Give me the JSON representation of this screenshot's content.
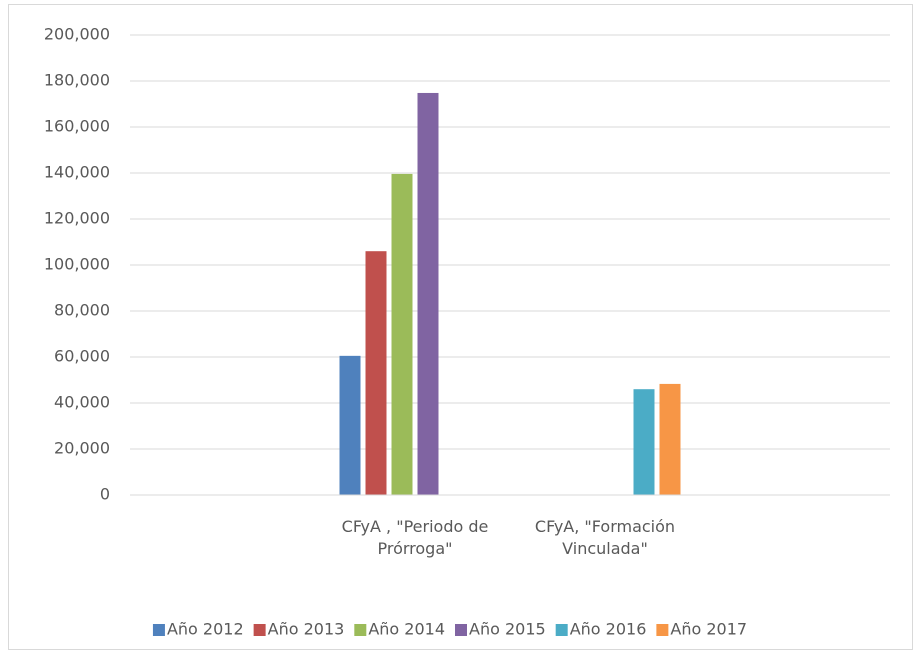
{
  "chart_data": {
    "type": "bar",
    "categories": [
      null,
      "CFyA , \"Periodo de Prórroga\"",
      "CFyA, \"Formación Vinculada\"",
      null
    ],
    "series": [
      {
        "name": "Año 2012",
        "color": "#4f81bd",
        "values": [
          null,
          60500,
          null,
          null
        ]
      },
      {
        "name": "Año 2013",
        "color": "#c0504d",
        "values": [
          null,
          106000,
          null,
          null
        ]
      },
      {
        "name": "Año 2014",
        "color": "#9bbb59",
        "values": [
          null,
          139600,
          null,
          null
        ]
      },
      {
        "name": "Año 2015",
        "color": "#8064a2",
        "values": [
          null,
          174800,
          null,
          null
        ]
      },
      {
        "name": "Año 2016",
        "color": "#4bacc6",
        "values": [
          null,
          null,
          46000,
          null
        ]
      },
      {
        "name": "Año 2017",
        "color": "#f79646",
        "values": [
          null,
          null,
          48300,
          null
        ]
      }
    ],
    "ylim": [
      0,
      200000
    ],
    "yticks": [
      0,
      {
        "value": 20000,
        "label": "20,000"
      },
      {
        "value": 40000,
        "label": "40,000"
      },
      {
        "value": 60000,
        "label": "60,000"
      },
      {
        "value": 80000,
        "label": "80,000"
      },
      {
        "value": 100000,
        "label": "100,000"
      },
      {
        "value": 120000,
        "label": "120,000"
      },
      {
        "value": 140000,
        "label": "140,000"
      },
      {
        "value": 160000,
        "label": "160,000"
      },
      {
        "value": 180000,
        "label": "180,000"
      },
      {
        "value": 200000,
        "label": "200,000"
      }
    ],
    "grid": true,
    "legend": "bottom"
  }
}
